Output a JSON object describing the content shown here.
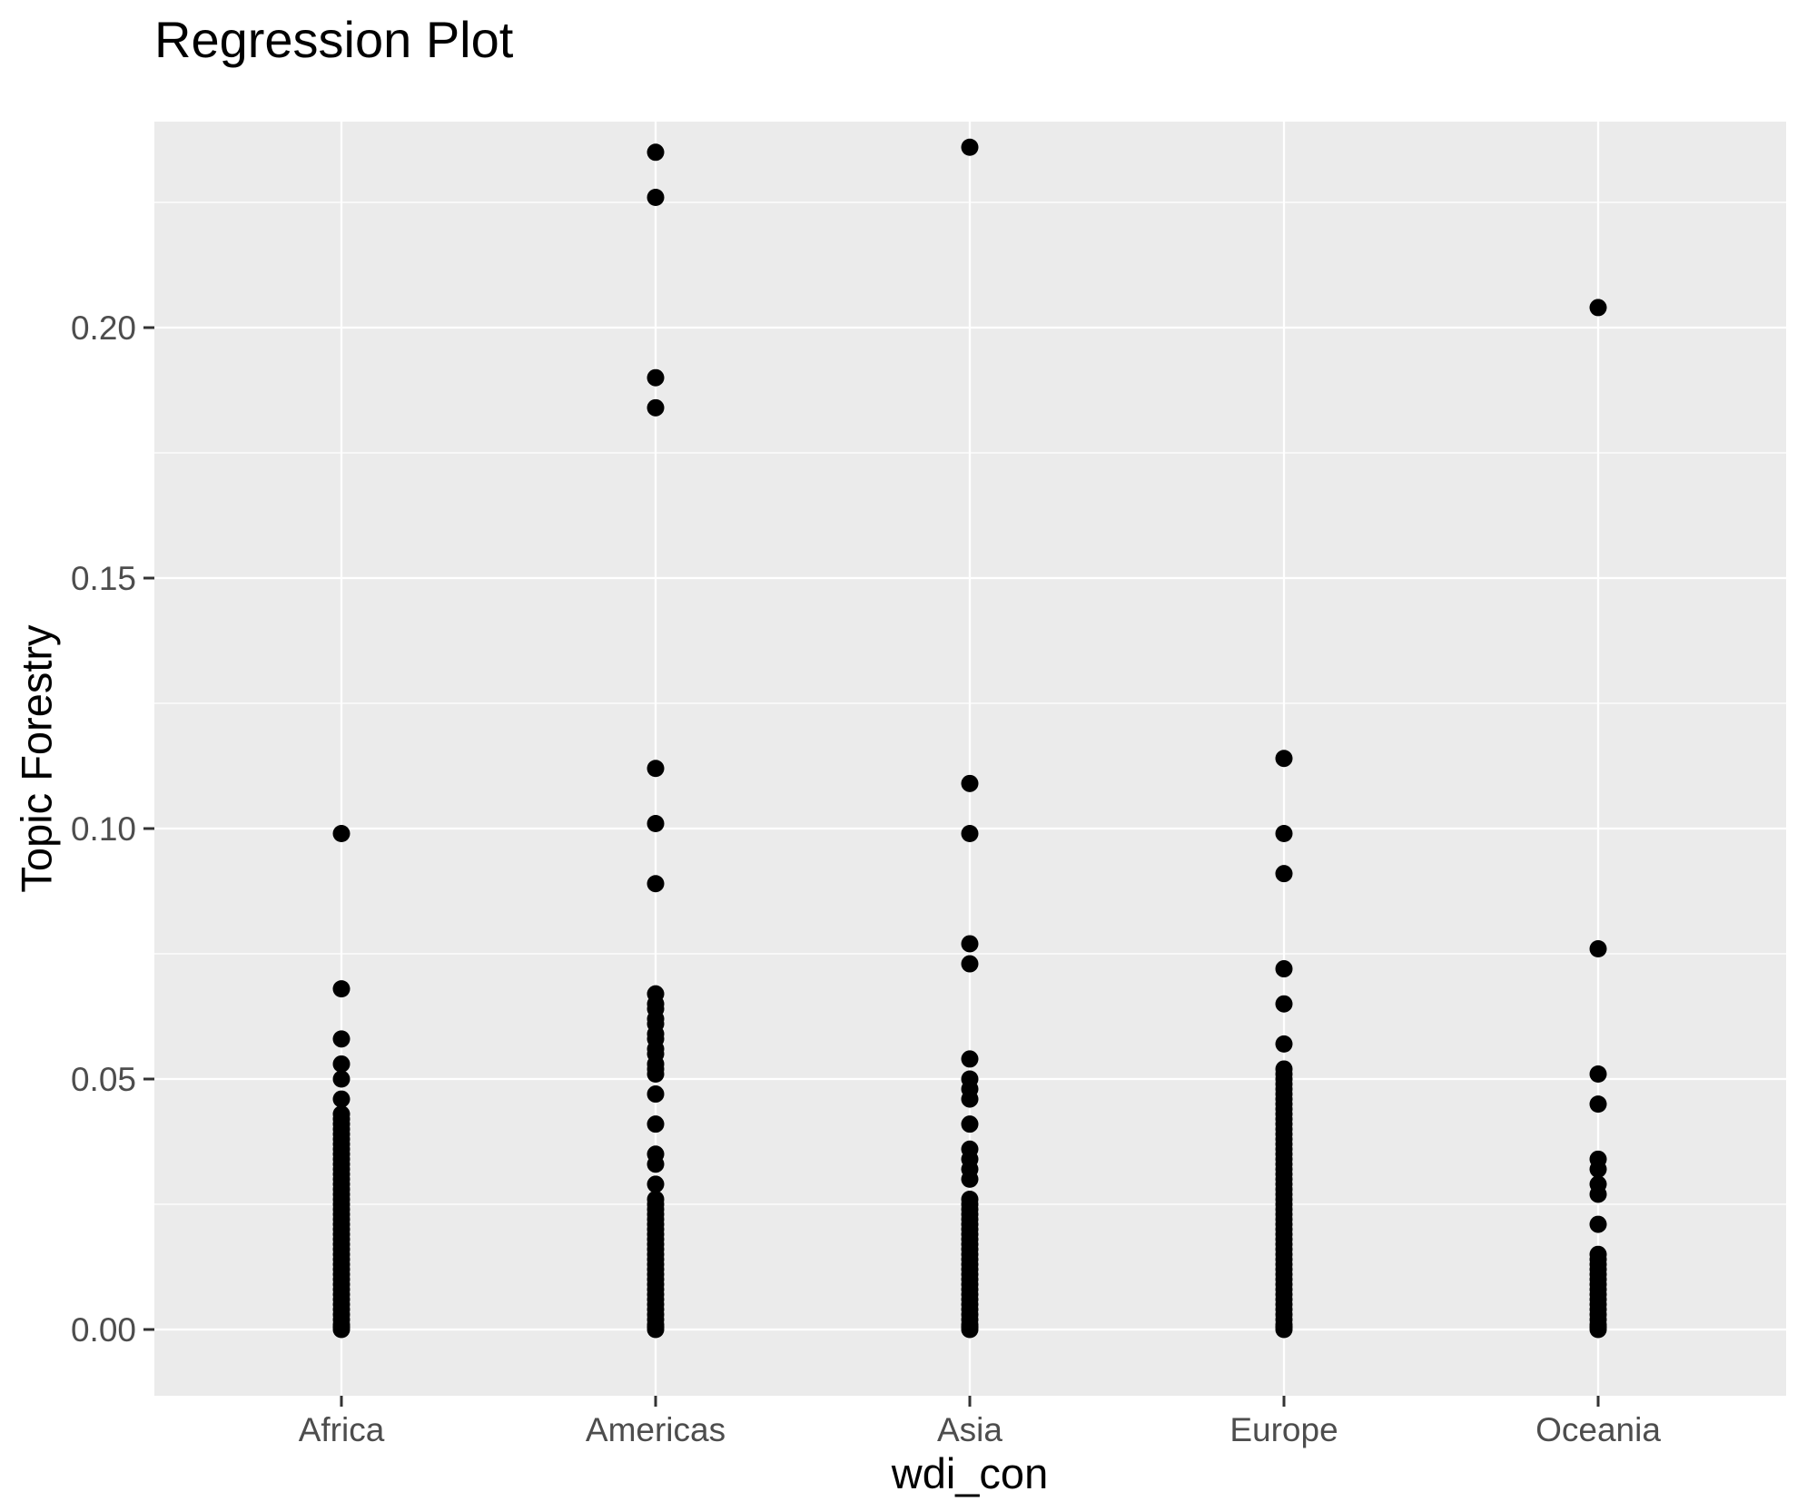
{
  "chart_data": {
    "type": "scatter",
    "title": "Regression Plot",
    "xlabel": "wdi_con",
    "ylabel": "Topic Forestry",
    "categories": [
      "Africa",
      "Americas",
      "Asia",
      "Europe",
      "Oceania"
    ],
    "y_axis": {
      "tick_labels": [
        "0.00",
        "0.05",
        "0.10",
        "0.15",
        "0.20"
      ],
      "tick_values": [
        0.0,
        0.05,
        0.1,
        0.15,
        0.2
      ],
      "minor_tick_values": [
        0.025,
        0.075,
        0.125,
        0.175,
        0.225
      ],
      "range": [
        -0.013,
        0.241
      ]
    },
    "grid": {
      "major": true,
      "minor": true
    },
    "legend_position": "none",
    "styles": {
      "panel_background": "#EBEBEB",
      "grid_color": "#FFFFFF",
      "point_color": "#000000",
      "tick_label_color": "#4D4D4D",
      "axis_title_color": "#000000",
      "tick_mark_color": "#333333"
    },
    "series": [
      {
        "name": "Africa",
        "values": [
          0.099,
          0.068,
          0.058,
          0.053,
          0.05,
          0.046,
          0.043,
          0.042,
          0.041,
          0.04,
          0.039,
          0.038,
          0.037,
          0.036,
          0.035,
          0.034,
          0.033,
          0.032,
          0.031,
          0.03,
          0.029,
          0.028,
          0.027,
          0.026,
          0.025,
          0.024,
          0.023,
          0.022,
          0.021,
          0.02,
          0.019,
          0.018,
          0.017,
          0.016,
          0.015,
          0.014,
          0.013,
          0.012,
          0.011,
          0.01,
          0.009,
          0.008,
          0.007,
          0.006,
          0.005,
          0.004,
          0.003,
          0.002,
          0.001,
          0.0005,
          0.0
        ]
      },
      {
        "name": "Americas",
        "values": [
          0.235,
          0.226,
          0.19,
          0.184,
          0.112,
          0.101,
          0.089,
          0.067,
          0.065,
          0.064,
          0.062,
          0.061,
          0.059,
          0.058,
          0.056,
          0.055,
          0.053,
          0.052,
          0.051,
          0.047,
          0.041,
          0.035,
          0.033,
          0.029,
          0.026,
          0.025,
          0.024,
          0.023,
          0.022,
          0.021,
          0.02,
          0.019,
          0.018,
          0.017,
          0.016,
          0.015,
          0.014,
          0.013,
          0.012,
          0.011,
          0.01,
          0.009,
          0.008,
          0.007,
          0.006,
          0.005,
          0.004,
          0.003,
          0.002,
          0.001,
          0.0005,
          0.0
        ]
      },
      {
        "name": "Asia",
        "values": [
          0.236,
          0.109,
          0.099,
          0.077,
          0.073,
          0.054,
          0.05,
          0.048,
          0.046,
          0.041,
          0.036,
          0.034,
          0.032,
          0.03,
          0.026,
          0.025,
          0.024,
          0.023,
          0.022,
          0.021,
          0.02,
          0.019,
          0.018,
          0.017,
          0.016,
          0.015,
          0.014,
          0.013,
          0.012,
          0.011,
          0.01,
          0.009,
          0.008,
          0.007,
          0.006,
          0.005,
          0.004,
          0.003,
          0.002,
          0.001,
          0.0005,
          0.0
        ]
      },
      {
        "name": "Europe",
        "values": [
          0.114,
          0.099,
          0.091,
          0.072,
          0.065,
          0.057,
          0.052,
          0.051,
          0.05,
          0.049,
          0.048,
          0.047,
          0.046,
          0.045,
          0.044,
          0.043,
          0.042,
          0.041,
          0.04,
          0.039,
          0.038,
          0.037,
          0.036,
          0.035,
          0.034,
          0.033,
          0.032,
          0.031,
          0.03,
          0.029,
          0.028,
          0.027,
          0.026,
          0.025,
          0.024,
          0.023,
          0.022,
          0.021,
          0.02,
          0.019,
          0.018,
          0.017,
          0.016,
          0.015,
          0.014,
          0.013,
          0.012,
          0.011,
          0.01,
          0.009,
          0.008,
          0.007,
          0.006,
          0.005,
          0.004,
          0.003,
          0.002,
          0.001,
          0.0005,
          0.0
        ]
      },
      {
        "name": "Oceania",
        "values": [
          0.204,
          0.076,
          0.051,
          0.045,
          0.034,
          0.032,
          0.029,
          0.027,
          0.021,
          0.015,
          0.014,
          0.013,
          0.012,
          0.011,
          0.01,
          0.009,
          0.008,
          0.007,
          0.006,
          0.005,
          0.004,
          0.003,
          0.002,
          0.001,
          0.0005,
          0.0
        ]
      }
    ]
  }
}
